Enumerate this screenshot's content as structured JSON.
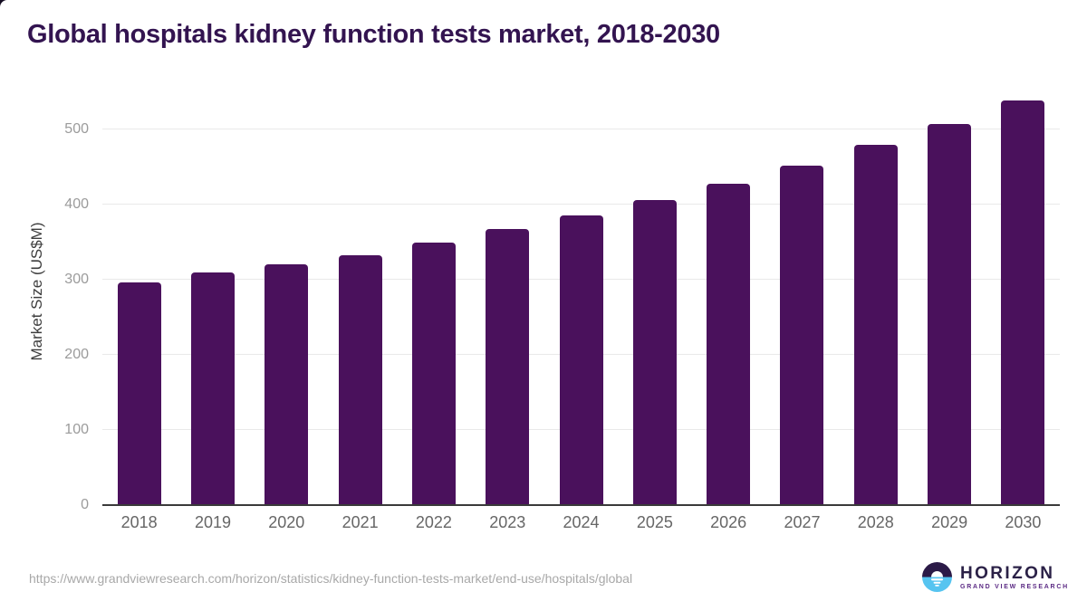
{
  "title": "Global hospitals kidney function tests market, 2018-2030",
  "footer": {
    "source_url": "https://www.grandviewresearch.com/horizon/statistics/kidney-function-tests-market/end-use/hospitals/global",
    "logo": {
      "wordmark": "HORIZON",
      "subtitle": "GRAND VIEW RESEARCH"
    }
  },
  "colors": {
    "bar": "#4a115c",
    "title_text": "#331450",
    "grid": "#e9e9e9",
    "axis_line": "#3a3a3a",
    "y_tick_text": "#9b9b9b",
    "x_tick_text": "#666666",
    "logo_dark": "#2b1a47",
    "logo_blue": "#56c4f0",
    "logo_wordmark": "#2b2147",
    "logo_subtitle": "#5b2a84"
  },
  "chart_data": {
    "type": "bar",
    "title": "Global hospitals kidney function tests market, 2018-2030",
    "categories": [
      "2018",
      "2019",
      "2020",
      "2021",
      "2022",
      "2023",
      "2024",
      "2025",
      "2026",
      "2027",
      "2028",
      "2029",
      "2030"
    ],
    "values": [
      297,
      310,
      321,
      332,
      349,
      367,
      385,
      406,
      428,
      452,
      479,
      507,
      538
    ],
    "xlabel": "",
    "ylabel": "Market Size (US$M)",
    "yticks": [
      0,
      100,
      200,
      300,
      400,
      500
    ],
    "ylim": [
      0,
      540
    ],
    "grid": true,
    "legend": false,
    "bar_color": "#4a115c"
  }
}
